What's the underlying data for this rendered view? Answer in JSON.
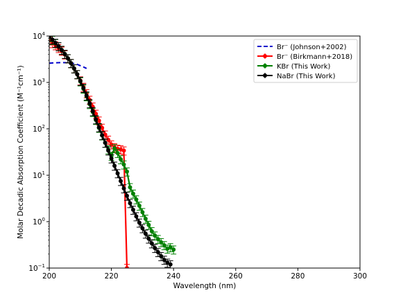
{
  "chart_data": {
    "type": "line",
    "xlabel": "Wavelength (nm)",
    "ylabel": "Molar Decadic Absorption Coefficient (M⁻¹cm⁻¹)",
    "x_scale": "linear",
    "y_scale": "log",
    "xlim": [
      200,
      300
    ],
    "ylim": [
      0.1,
      10000
    ],
    "x_ticks": [
      200,
      220,
      240,
      260,
      280,
      300
    ],
    "x_tick_labels": [
      "200",
      "220",
      "240",
      "260",
      "280",
      "300"
    ],
    "y_ticks": [
      {
        "value": 0.1,
        "base": "10",
        "exp": "−1"
      },
      {
        "value": 1,
        "base": "10",
        "exp": "0"
      },
      {
        "value": 10,
        "base": "10",
        "exp": "1"
      },
      {
        "value": 100,
        "base": "10",
        "exp": "2"
      },
      {
        "value": 1000,
        "base": "10",
        "exp": "3"
      },
      {
        "value": 10000,
        "base": "10",
        "exp": "4"
      }
    ],
    "grid": false,
    "legend_position": "top-right",
    "series": [
      {
        "name": "Br⁻ (Johnson+2002)",
        "color": "#0000cc",
        "style": "dashed",
        "marker": "none",
        "x": [
          200,
          202,
          204,
          206,
          208,
          209,
          210,
          211,
          212
        ],
        "y": [
          2600,
          2650,
          2680,
          2650,
          2550,
          2450,
          2300,
          2150,
          2000
        ]
      },
      {
        "name": "Br⁻ (Birkmann+2018)",
        "color": "#ff0000",
        "style": "solid",
        "marker": "circle",
        "error_rel": 0.2,
        "x": [
          200,
          201,
          202,
          203,
          204,
          205,
          206,
          207,
          208,
          209,
          210,
          211,
          212,
          213,
          214,
          215,
          216,
          217,
          218,
          219,
          220,
          221,
          222,
          223,
          224,
          225
        ],
        "y": [
          8000,
          7000,
          6300,
          5500,
          4800,
          4000,
          3300,
          2600,
          2000,
          1500,
          1100,
          800,
          580,
          420,
          300,
          210,
          150,
          105,
          75,
          58,
          46,
          40,
          37,
          36,
          34,
          0.1
        ]
      },
      {
        "name": "KBr (This Work)",
        "color": "#008000",
        "style": "solid",
        "marker": "circle",
        "error_rel": 0.2,
        "x": [
          200,
          201,
          202,
          203,
          204,
          205,
          206,
          207,
          208,
          209,
          210,
          211,
          212,
          213,
          214,
          215,
          216,
          217,
          218,
          219,
          220,
          221,
          222,
          223,
          224,
          225,
          226,
          227,
          228,
          229,
          230,
          231,
          232,
          233,
          234,
          235,
          236,
          237,
          238,
          239,
          240
        ],
        "y": [
          9500,
          8200,
          7000,
          6000,
          5000,
          4100,
          3300,
          2600,
          2000,
          1500,
          1050,
          730,
          500,
          340,
          230,
          155,
          105,
          72,
          50,
          36,
          26,
          38,
          30,
          22,
          17,
          12,
          5.5,
          4,
          3,
          2.2,
          1.6,
          1.15,
          0.85,
          0.62,
          0.5,
          0.42,
          0.36,
          0.31,
          0.26,
          0.28,
          0.25
        ]
      },
      {
        "name": "NaBr (This Work)",
        "color": "#000000",
        "style": "solid",
        "marker": "circle",
        "error_rel": 0.2,
        "x": [
          200,
          201,
          202,
          203,
          204,
          205,
          206,
          207,
          208,
          209,
          210,
          211,
          212,
          213,
          214,
          215,
          216,
          217,
          218,
          219,
          220,
          221,
          222,
          223,
          224,
          225,
          226,
          227,
          228,
          229,
          230,
          231,
          232,
          233,
          234,
          235,
          236,
          237,
          238,
          239
        ],
        "y": [
          9800,
          8400,
          7100,
          6000,
          5000,
          4100,
          3300,
          2600,
          2000,
          1500,
          1080,
          760,
          520,
          355,
          240,
          160,
          108,
          73,
          50,
          34,
          23,
          16,
          11,
          7.5,
          5.2,
          3.6,
          2.5,
          1.8,
          1.3,
          0.95,
          0.72,
          0.55,
          0.43,
          0.34,
          0.27,
          0.22,
          0.18,
          0.15,
          0.13,
          0.12
        ]
      }
    ]
  }
}
